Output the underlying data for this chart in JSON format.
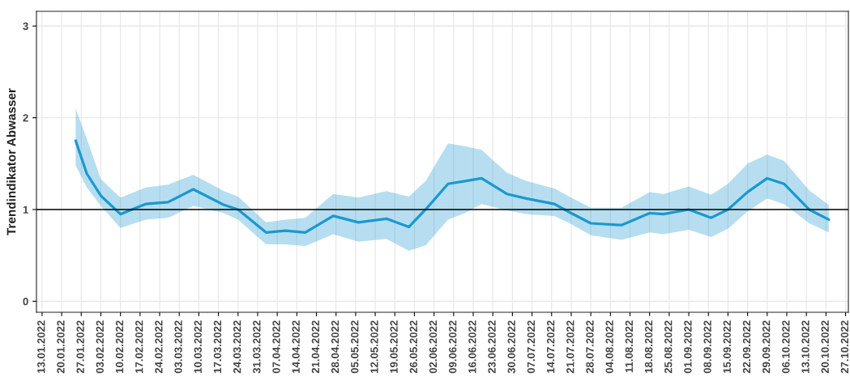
{
  "chart_data": {
    "type": "line",
    "ylabel": "Trendindikator Abwasser",
    "x": [
      "2022-01-25",
      "2022-01-29",
      "2022-02-03",
      "2022-02-10",
      "2022-02-19",
      "2022-02-27",
      "2022-03-08",
      "2022-03-19",
      "2022-03-24",
      "2022-04-03",
      "2022-04-10",
      "2022-04-17",
      "2022-04-27",
      "2022-05-06",
      "2022-05-16",
      "2022-05-24",
      "2022-05-30",
      "2022-06-07",
      "2022-06-13",
      "2022-06-19",
      "2022-06-28",
      "2022-07-05",
      "2022-07-15",
      "2022-07-21",
      "2022-07-28",
      "2022-08-08",
      "2022-08-18",
      "2022-08-23",
      "2022-09-01",
      "2022-09-09",
      "2022-09-15",
      "2022-09-22",
      "2022-09-29",
      "2022-10-05",
      "2022-10-14",
      "2022-10-21"
    ],
    "series": [
      {
        "color": "#1b98cf",
        "values": [
          1.75,
          1.39,
          1.15,
          0.95,
          1.06,
          1.08,
          1.22,
          1.05,
          1.0,
          0.75,
          0.77,
          0.75,
          0.93,
          0.86,
          0.9,
          0.81,
          1.0,
          1.28,
          1.31,
          1.34,
          1.17,
          1.12,
          1.06,
          0.96,
          0.85,
          0.83,
          0.96,
          0.95,
          1.0,
          0.91,
          1.0,
          1.19,
          1.34,
          1.28,
          1.0,
          0.89
        ],
        "lower": [
          1.48,
          1.24,
          1.04,
          0.8,
          0.89,
          0.91,
          1.04,
          0.96,
          0.89,
          0.62,
          0.62,
          0.6,
          0.73,
          0.65,
          0.68,
          0.55,
          0.61,
          0.89,
          0.96,
          1.06,
          0.99,
          0.95,
          0.93,
          0.84,
          0.72,
          0.67,
          0.75,
          0.73,
          0.78,
          0.7,
          0.79,
          0.98,
          1.12,
          1.06,
          0.85,
          0.75
        ],
        "upper": [
          2.1,
          1.77,
          1.33,
          1.13,
          1.24,
          1.27,
          1.38,
          1.2,
          1.14,
          0.86,
          0.89,
          0.91,
          1.17,
          1.13,
          1.2,
          1.14,
          1.31,
          1.72,
          1.69,
          1.65,
          1.4,
          1.31,
          1.23,
          1.13,
          1.02,
          1.02,
          1.19,
          1.17,
          1.25,
          1.16,
          1.28,
          1.5,
          1.6,
          1.53,
          1.21,
          1.05
        ]
      }
    ],
    "xlim": [
      "2022-01-11",
      "2022-10-28"
    ],
    "xticks": [
      {
        "value": "2022-01-13",
        "label": "13.01.2022"
      },
      {
        "value": "2022-01-20",
        "label": "20.01.2022"
      },
      {
        "value": "2022-01-27",
        "label": "27.01.2022"
      },
      {
        "value": "2022-02-03",
        "label": "03.02.2022"
      },
      {
        "value": "2022-02-10",
        "label": "10.02.2022"
      },
      {
        "value": "2022-02-17",
        "label": "17.02.2022"
      },
      {
        "value": "2022-02-24",
        "label": "24.02.2022"
      },
      {
        "value": "2022-03-03",
        "label": "03.03.2022"
      },
      {
        "value": "2022-03-10",
        "label": "10.03.2022"
      },
      {
        "value": "2022-03-17",
        "label": "17.03.2022"
      },
      {
        "value": "2022-03-24",
        "label": "24.03.2022"
      },
      {
        "value": "2022-03-31",
        "label": "31.03.2022"
      },
      {
        "value": "2022-04-07",
        "label": "07.04.2022"
      },
      {
        "value": "2022-04-14",
        "label": "14.04.2022"
      },
      {
        "value": "2022-04-21",
        "label": "21.04.2022"
      },
      {
        "value": "2022-04-28",
        "label": "28.04.2022"
      },
      {
        "value": "2022-05-05",
        "label": "05.05.2022"
      },
      {
        "value": "2022-05-12",
        "label": "12.05.2022"
      },
      {
        "value": "2022-05-19",
        "label": "19.05.2022"
      },
      {
        "value": "2022-05-26",
        "label": "26.05.2022"
      },
      {
        "value": "2022-06-02",
        "label": "02.06.2022"
      },
      {
        "value": "2022-06-09",
        "label": "09.06.2022"
      },
      {
        "value": "2022-06-16",
        "label": "16.06.2022"
      },
      {
        "value": "2022-06-23",
        "label": "23.06.2022"
      },
      {
        "value": "2022-06-30",
        "label": "30.06.2022"
      },
      {
        "value": "2022-07-07",
        "label": "07.07.2022"
      },
      {
        "value": "2022-07-14",
        "label": "14.07.2022"
      },
      {
        "value": "2022-07-21",
        "label": "21.07.2022"
      },
      {
        "value": "2022-07-28",
        "label": "28.07.2022"
      },
      {
        "value": "2022-08-04",
        "label": "04.08.2022"
      },
      {
        "value": "2022-08-11",
        "label": "11.08.2022"
      },
      {
        "value": "2022-08-18",
        "label": "18.08.2022"
      },
      {
        "value": "2022-08-25",
        "label": "25.08.2022"
      },
      {
        "value": "2022-09-01",
        "label": "01.09.2022"
      },
      {
        "value": "2022-09-08",
        "label": "08.09.2022"
      },
      {
        "value": "2022-09-15",
        "label": "15.09.2022"
      },
      {
        "value": "2022-09-22",
        "label": "22.09.2022"
      },
      {
        "value": "2022-09-29",
        "label": "29.09.2022"
      },
      {
        "value": "2022-10-06",
        "label": "06.10.2022"
      },
      {
        "value": "2022-10-13",
        "label": "13.10.2022"
      },
      {
        "value": "2022-10-20",
        "label": "20.10.2022"
      },
      {
        "value": "2022-10-27",
        "label": "27.10.2022"
      }
    ],
    "ylim": [
      -0.12,
      3.16
    ],
    "yticks": [
      0,
      1,
      2,
      3
    ],
    "ref_lines": [
      {
        "axis": "y",
        "value": 1,
        "color": "#000000"
      }
    ],
    "grid": true,
    "legend": false,
    "marker": "none",
    "line_style": "solid"
  }
}
